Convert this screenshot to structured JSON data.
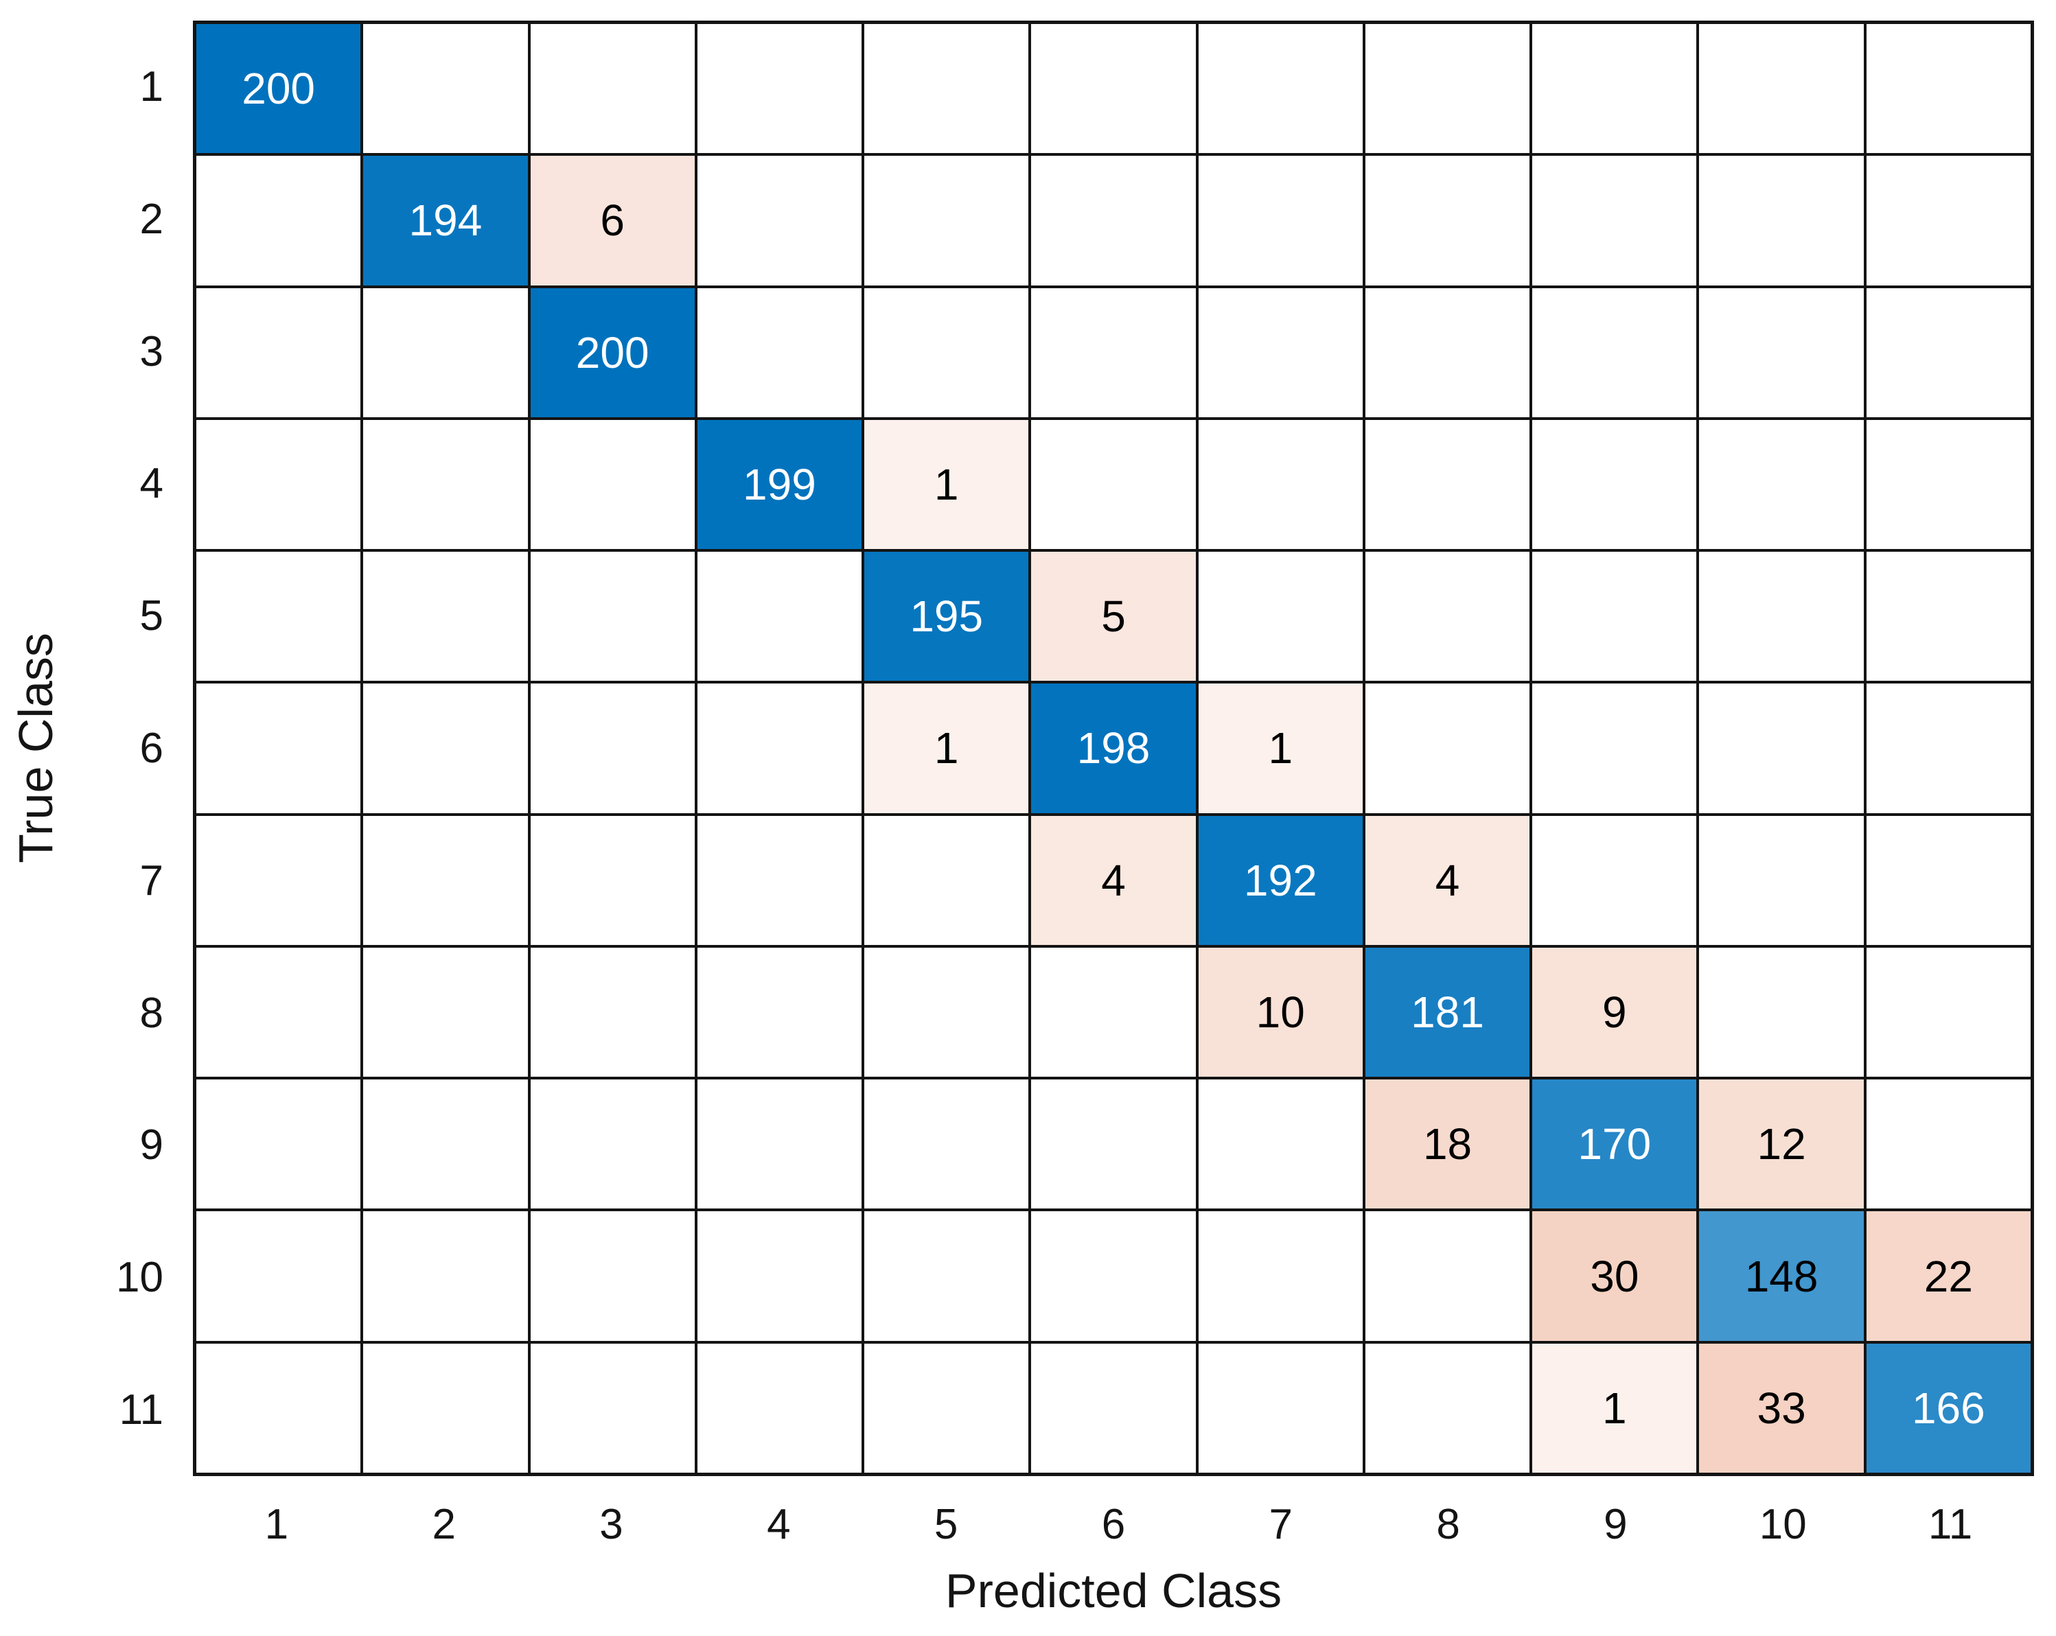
{
  "chart_data": {
    "type": "heatmap",
    "subtype": "confusion-matrix",
    "title": "",
    "xlabel": "Predicted Class",
    "ylabel": "True Class",
    "x_tick_labels": [
      "1",
      "2",
      "3",
      "4",
      "5",
      "6",
      "7",
      "8",
      "9",
      "10",
      "11"
    ],
    "y_tick_labels": [
      "1",
      "2",
      "3",
      "4",
      "5",
      "6",
      "7",
      "8",
      "9",
      "10",
      "11"
    ],
    "matrix": [
      [
        200,
        0,
        0,
        0,
        0,
        0,
        0,
        0,
        0,
        0,
        0
      ],
      [
        0,
        194,
        6,
        0,
        0,
        0,
        0,
        0,
        0,
        0,
        0
      ],
      [
        0,
        0,
        200,
        0,
        0,
        0,
        0,
        0,
        0,
        0,
        0
      ],
      [
        0,
        0,
        0,
        199,
        1,
        0,
        0,
        0,
        0,
        0,
        0
      ],
      [
        0,
        0,
        0,
        0,
        195,
        5,
        0,
        0,
        0,
        0,
        0
      ],
      [
        0,
        0,
        0,
        0,
        1,
        198,
        1,
        0,
        0,
        0,
        0
      ],
      [
        0,
        0,
        0,
        0,
        0,
        4,
        192,
        4,
        0,
        0,
        0
      ],
      [
        0,
        0,
        0,
        0,
        0,
        0,
        10,
        181,
        9,
        0,
        0
      ],
      [
        0,
        0,
        0,
        0,
        0,
        0,
        0,
        18,
        170,
        12,
        0
      ],
      [
        0,
        0,
        0,
        0,
        0,
        0,
        0,
        0,
        30,
        148,
        22
      ],
      [
        0,
        0,
        0,
        0,
        0,
        0,
        0,
        0,
        1,
        33,
        166
      ]
    ],
    "max_value": 200,
    "diagonal_color": "#0072BD",
    "offdiagonal_color": "#D95319",
    "zero_cell_color": "#FFFFFF",
    "gridline_color": "#141414",
    "cell_text_dark": "#000000",
    "cell_text_light": "#FFFFFF",
    "legend_position": "none",
    "grid": "on"
  }
}
